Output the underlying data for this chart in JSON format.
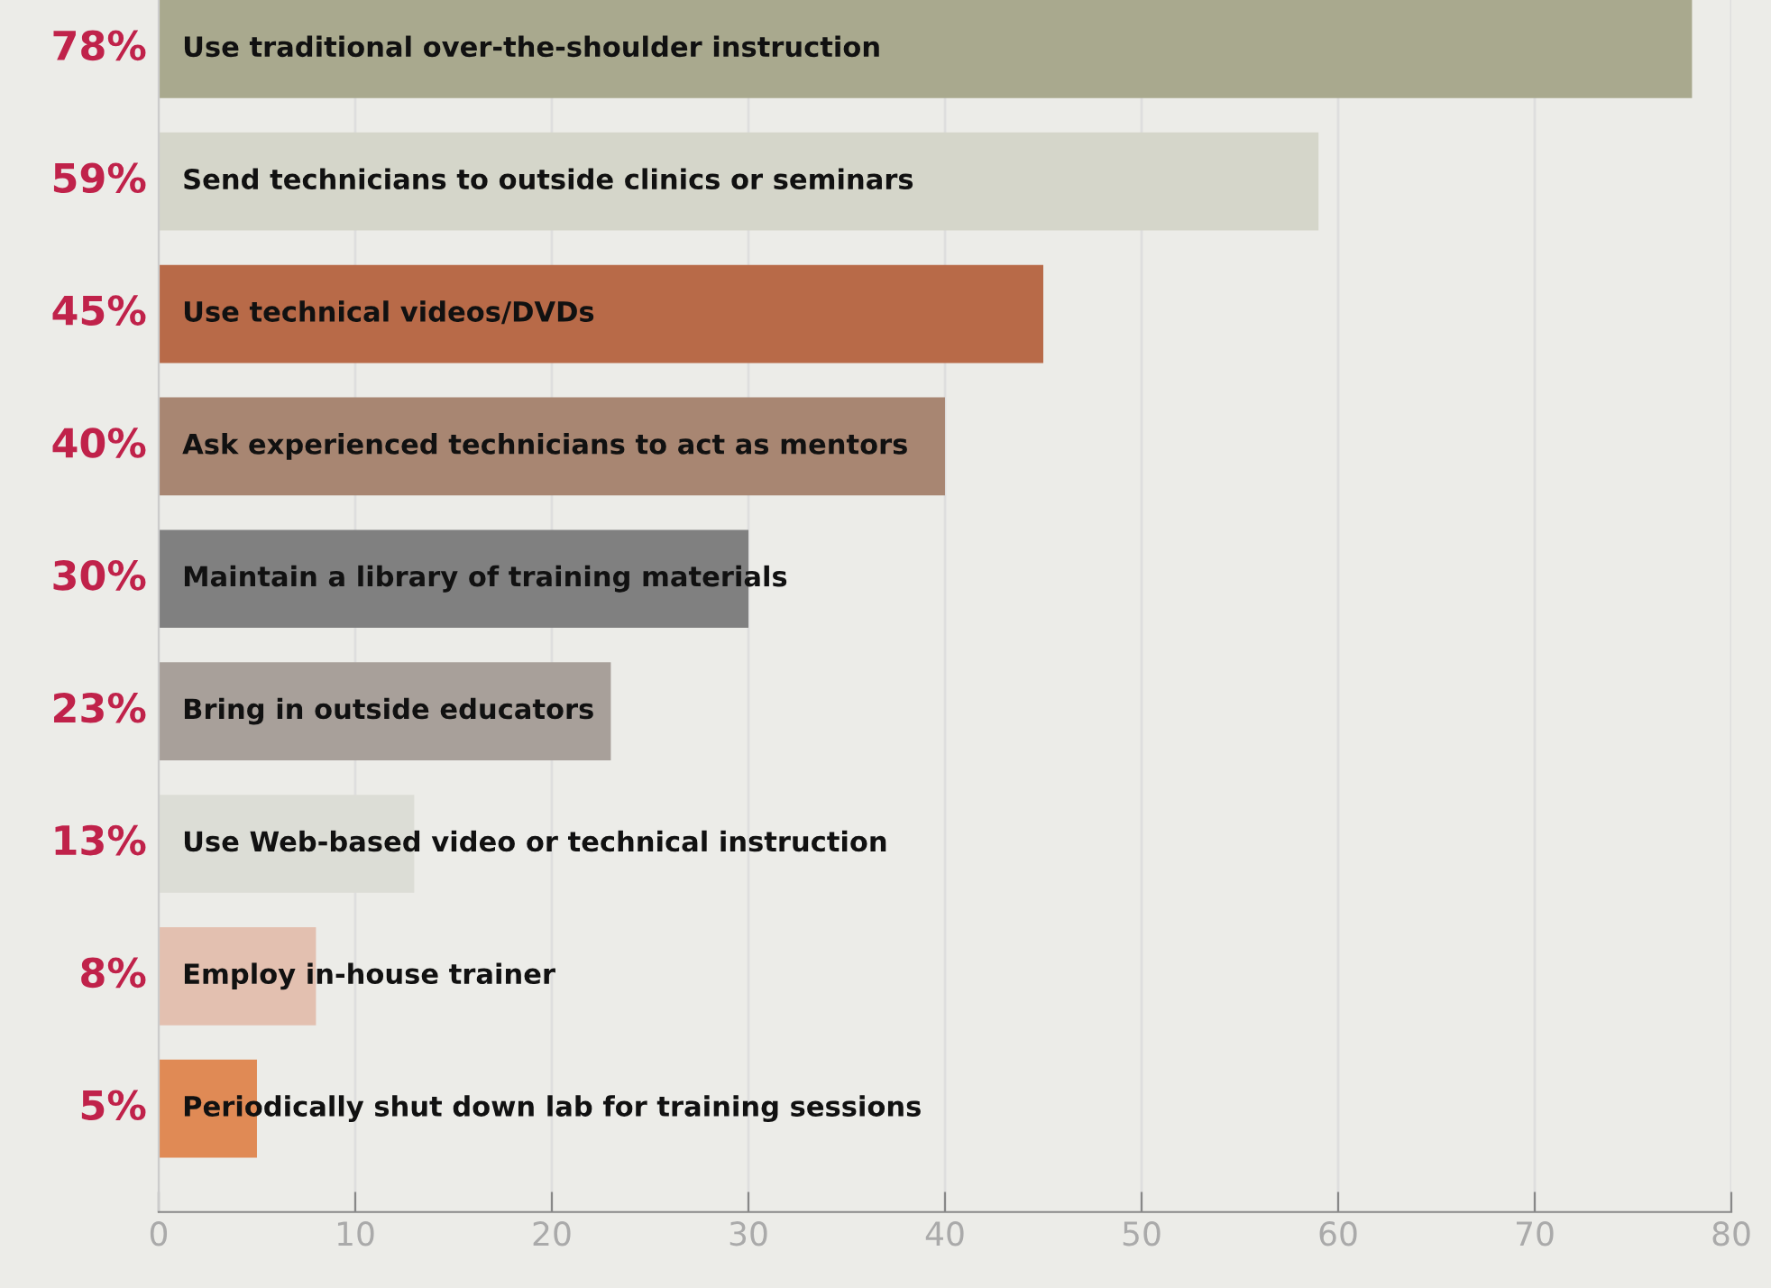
{
  "chart_data": {
    "type": "bar",
    "orientation": "horizontal",
    "categories": [
      "Use traditional over-the-shoulder instruction",
      "Send technicians to outside clinics or seminars",
      "Use technical videos/DVDs",
      "Ask experienced technicians to act as mentors",
      "Maintain a library of training materials",
      "Bring in outside educators",
      "Use Web-based video or technical instruction",
      "Employ in-house trainer",
      "Periodically shut down lab for training sessions"
    ],
    "values": [
      78,
      59,
      45,
      40,
      30,
      23,
      13,
      8,
      5
    ],
    "value_labels": [
      "78%",
      "59%",
      "45%",
      "40%",
      "30%",
      "23%",
      "13%",
      "8%",
      "5%"
    ],
    "colors": [
      "#a9a98e",
      "#d5d6ca",
      "#b86a48",
      "#a88672",
      "#808080",
      "#a8a09a",
      "#dcddd6",
      "#e3c0b0",
      "#e08a55"
    ],
    "xlim": [
      0,
      80
    ],
    "xticks": [
      0,
      10,
      20,
      30,
      40,
      50,
      60,
      70,
      80
    ],
    "grid": "x"
  }
}
